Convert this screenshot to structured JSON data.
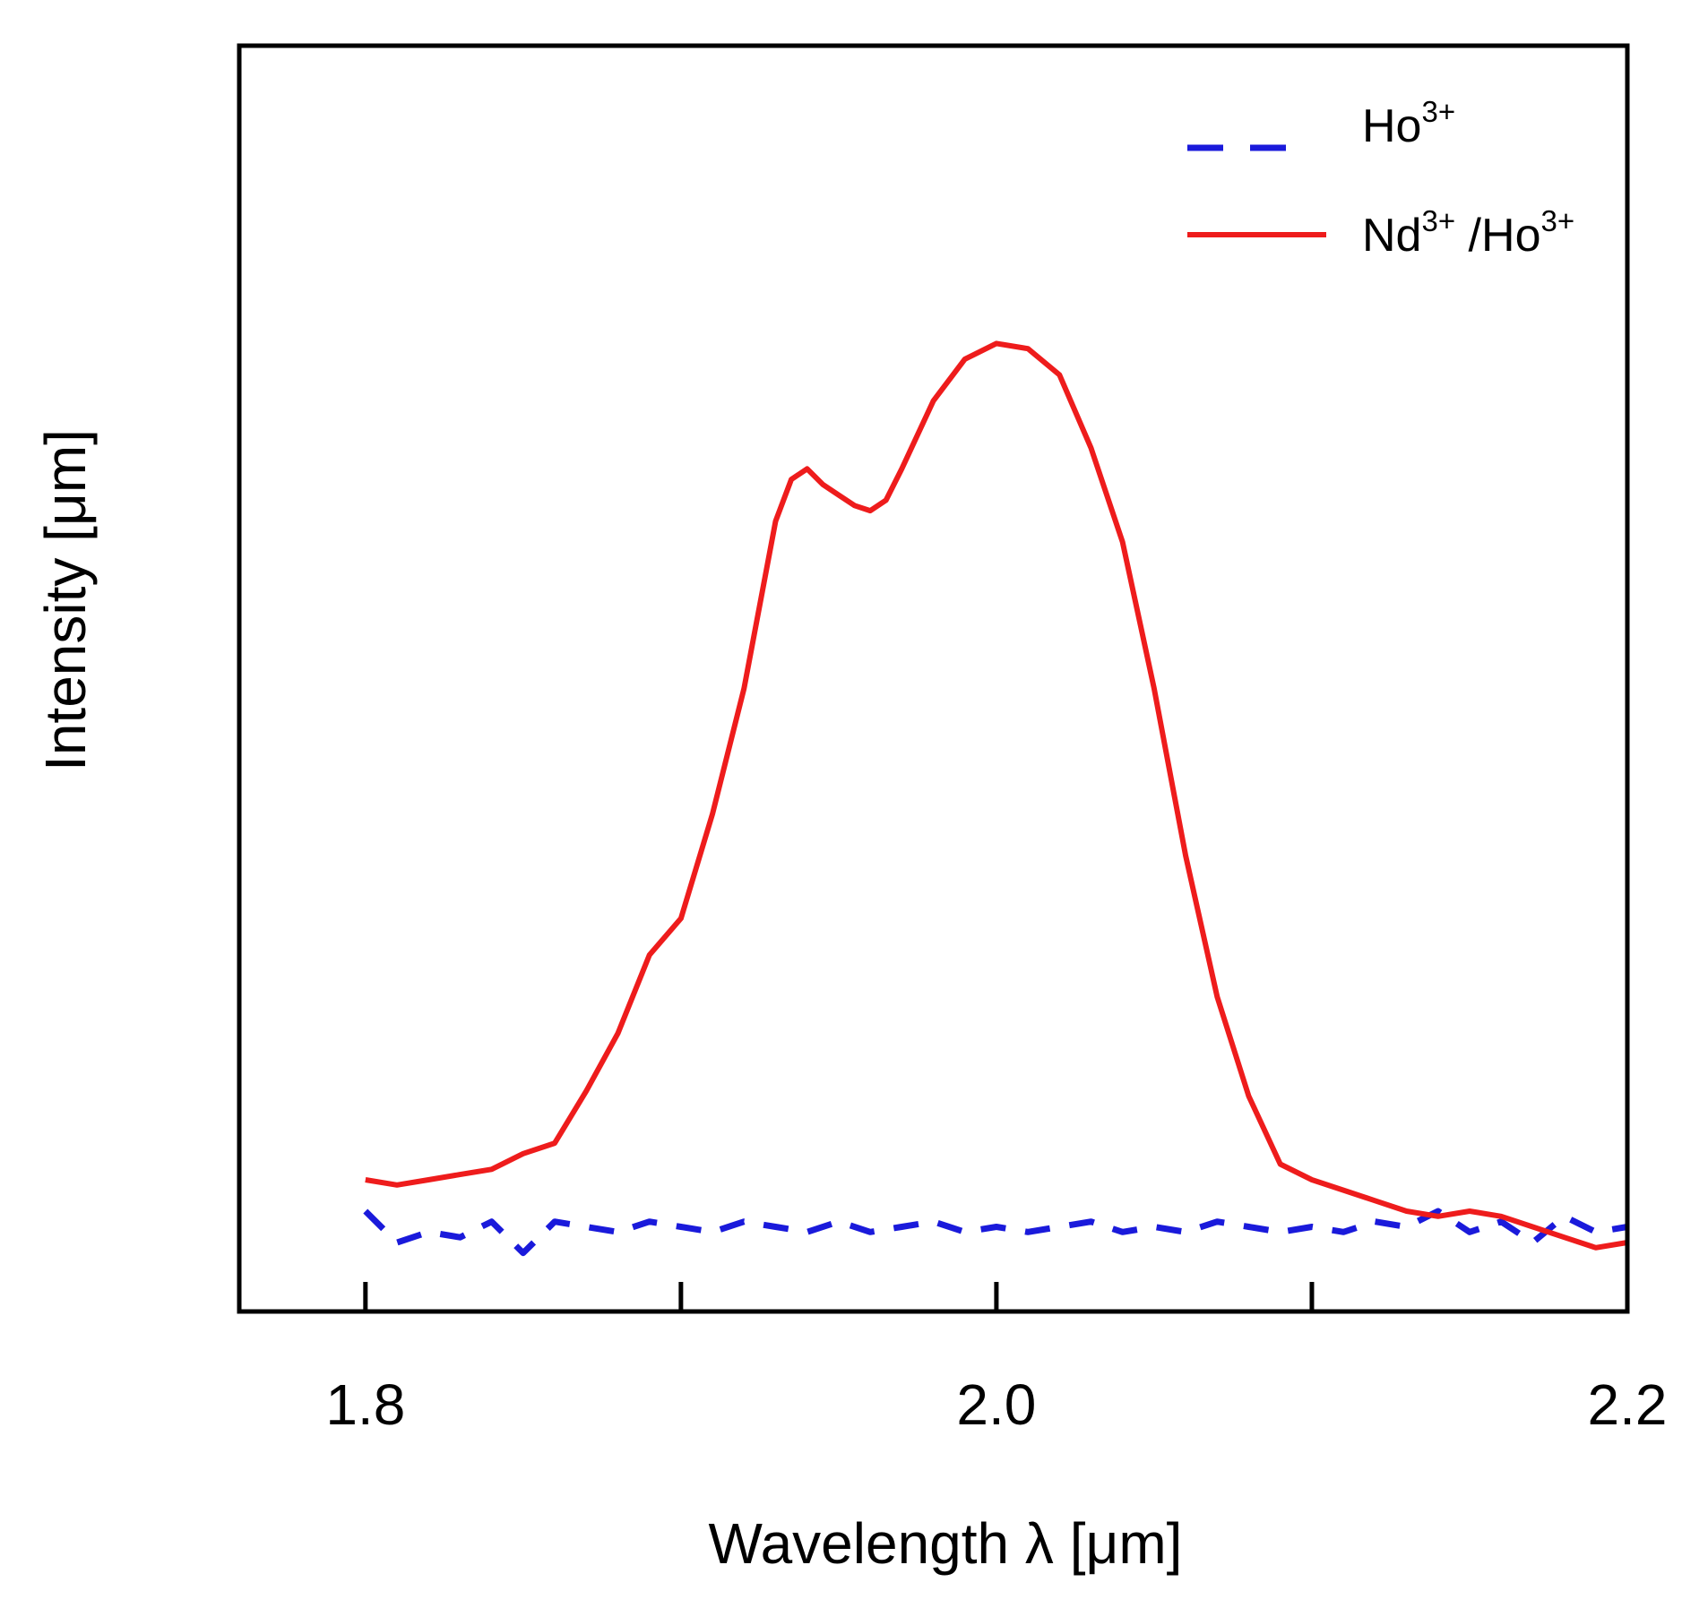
{
  "chart_data": {
    "type": "line",
    "title": "",
    "xlabel": "Wavelength λ  [μm]",
    "ylabel": "Intensity [μm]",
    "xlim": [
      1.76,
      2.2
    ],
    "ylim": [
      0,
      1.0
    ],
    "grid": false,
    "legend_position": "top-right",
    "x_ticks": [
      {
        "value": 1.8,
        "label": "1.8"
      },
      {
        "value": 2.0,
        "label": "2.0"
      },
      {
        "value": 2.2,
        "label": "2.2"
      }
    ],
    "x_minor_ticks": [
      1.9,
      2.1
    ],
    "series": [
      {
        "name": "Ho3+",
        "legend_base": "Ho",
        "legend_sup": "3+",
        "color": "#1a1adb",
        "style": "dashed",
        "x": [
          1.8,
          1.81,
          1.82,
          1.83,
          1.84,
          1.85,
          1.86,
          1.87,
          1.88,
          1.89,
          1.9,
          1.91,
          1.92,
          1.93,
          1.94,
          1.95,
          1.96,
          1.97,
          1.98,
          1.99,
          2.0,
          2.01,
          2.02,
          2.03,
          2.04,
          2.05,
          2.06,
          2.07,
          2.08,
          2.09,
          2.1,
          2.11,
          2.12,
          2.13,
          2.14,
          2.15,
          2.16,
          2.17,
          2.18,
          2.19,
          2.2
        ],
        "y": [
          0.06,
          0.03,
          0.04,
          0.035,
          0.05,
          0.02,
          0.05,
          0.045,
          0.04,
          0.05,
          0.045,
          0.04,
          0.05,
          0.045,
          0.04,
          0.05,
          0.04,
          0.045,
          0.05,
          0.04,
          0.045,
          0.04,
          0.045,
          0.05,
          0.04,
          0.045,
          0.04,
          0.05,
          0.045,
          0.04,
          0.045,
          0.04,
          0.05,
          0.045,
          0.06,
          0.04,
          0.05,
          0.03,
          0.055,
          0.04,
          0.045
        ]
      },
      {
        "name": "Nd3+/Ho3+",
        "legend_base": "Nd",
        "legend_sup": "3+",
        "legend_sep": " /",
        "legend_base2": "Ho",
        "legend_sup2": "3+",
        "color": "#ee1c1c",
        "style": "solid",
        "x": [
          1.8,
          1.81,
          1.82,
          1.83,
          1.84,
          1.85,
          1.86,
          1.87,
          1.88,
          1.89,
          1.9,
          1.91,
          1.92,
          1.93,
          1.935,
          1.94,
          1.945,
          1.95,
          1.955,
          1.96,
          1.965,
          1.97,
          1.98,
          1.99,
          2.0,
          2.01,
          2.02,
          2.03,
          2.04,
          2.05,
          2.06,
          2.07,
          2.08,
          2.09,
          2.1,
          2.11,
          2.12,
          2.13,
          2.14,
          2.15,
          2.16,
          2.17,
          2.18,
          2.19,
          2.2
        ],
        "y": [
          0.09,
          0.085,
          0.09,
          0.095,
          0.1,
          0.115,
          0.125,
          0.175,
          0.23,
          0.305,
          0.34,
          0.44,
          0.56,
          0.72,
          0.76,
          0.77,
          0.755,
          0.745,
          0.735,
          0.73,
          0.74,
          0.77,
          0.835,
          0.875,
          0.89,
          0.885,
          0.86,
          0.79,
          0.7,
          0.56,
          0.4,
          0.265,
          0.17,
          0.105,
          0.09,
          0.08,
          0.07,
          0.06,
          0.055,
          0.06,
          0.055,
          0.045,
          0.035,
          0.025,
          0.03
        ]
      }
    ]
  }
}
